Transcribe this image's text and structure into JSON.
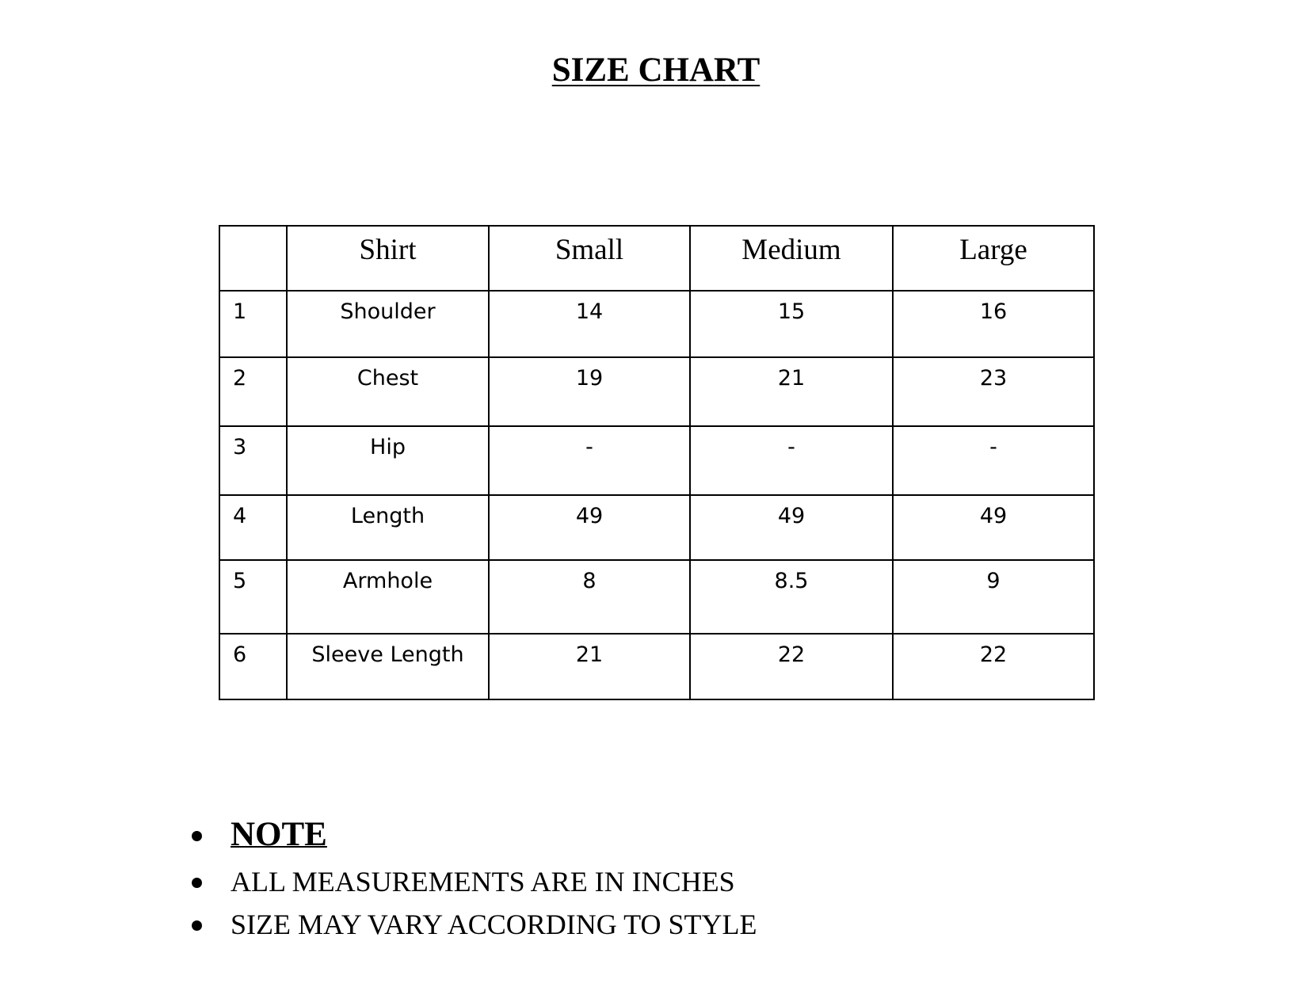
{
  "title": "SIZE CHART",
  "table": {
    "headers": [
      "",
      "Shirt",
      "Small",
      "Medium",
      "Large"
    ],
    "rows": [
      [
        "1",
        "Shoulder",
        "14",
        "15",
        "16"
      ],
      [
        "2",
        "Chest",
        "19",
        "21",
        "23"
      ],
      [
        "3",
        "Hip",
        "-",
        "-",
        "-"
      ],
      [
        "4",
        "Length",
        "49",
        "49",
        "49"
      ],
      [
        "5",
        "Armhole",
        "8",
        "8.5",
        "9"
      ],
      [
        "6",
        "Sleeve Length",
        "21",
        "22",
        "22"
      ]
    ]
  },
  "notes": {
    "heading": "NOTE",
    "items": [
      "ALL MEASUREMENTS ARE IN INCHES",
      "SIZE MAY VARY ACCORDING TO STYLE"
    ]
  }
}
